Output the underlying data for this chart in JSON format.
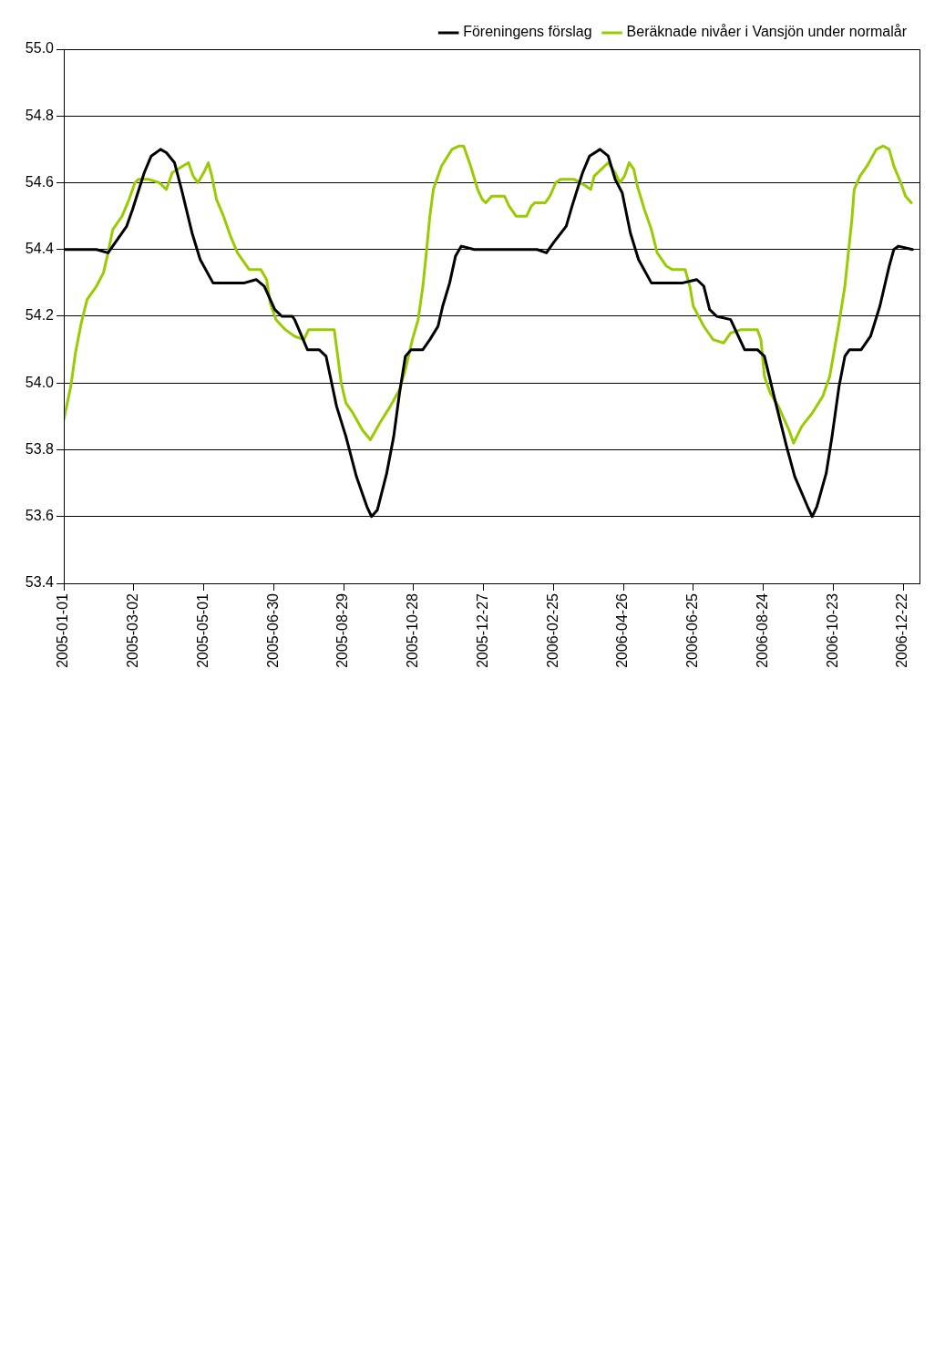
{
  "chart_data": {
    "type": "line",
    "xlim": [
      "2005-01-01",
      "2007-01-05"
    ],
    "xticks": [
      "2005-01-01",
      "2005-03-02",
      "2005-05-01",
      "2005-06-30",
      "2005-08-29",
      "2005-10-28",
      "2005-12-27",
      "2006-02-25",
      "2006-04-26",
      "2006-06-25",
      "2006-08-24",
      "2006-10-23",
      "2006-12-22"
    ],
    "ylim": [
      53.4,
      55.0
    ],
    "yticks": [
      {
        "value": 53.4,
        "label": "53.4"
      },
      {
        "value": 53.6,
        "label": "53.6"
      },
      {
        "value": 53.8,
        "label": "53.8"
      },
      {
        "value": 54,
        "label": "54.0"
      },
      {
        "value": 54.2,
        "label": "54.2"
      },
      {
        "value": 54.4,
        "label": "54.4"
      },
      {
        "value": 54.6,
        "label": "54.6"
      },
      {
        "value": 54.8,
        "label": "54.8"
      },
      {
        "value": 55,
        "label": "55.0"
      }
    ],
    "grid": "y",
    "legend": "top right",
    "marker": "none",
    "line_style": "solid",
    "series": [
      {
        "name": "Föreningens förslag",
        "color": "#000000",
        "x": [
          "2005-01-01",
          "2005-01-29",
          "2005-02-08",
          "2005-02-14",
          "2005-02-24",
          "2005-03-01",
          "2005-03-11",
          "2005-03-17",
          "2005-03-25",
          "2005-03-30",
          "2005-04-06",
          "2005-04-12",
          "2005-04-21",
          "2005-04-28",
          "2005-05-09",
          "2005-05-14",
          "2005-06-05",
          "2005-06-15",
          "2005-06-22",
          "2005-07-01",
          "2005-07-07",
          "2005-07-16",
          "2005-07-18",
          "2005-07-29",
          "2005-08-08",
          "2005-08-14",
          "2005-08-23",
          "2005-08-31",
          "2005-09-09",
          "2005-09-18",
          "2005-09-22",
          "2005-09-27",
          "2005-10-05",
          "2005-10-11",
          "2005-10-16",
          "2005-10-21",
          "2005-10-26",
          "2005-11-05",
          "2005-11-11",
          "2005-11-18",
          "2005-11-22",
          "2005-11-28",
          "2005-12-03",
          "2005-12-08",
          "2005-12-19",
          "2006-02-11",
          "2006-02-19",
          "2006-02-25",
          "2006-03-08",
          "2006-03-13",
          "2006-03-22",
          "2006-03-28",
          "2006-04-06",
          "2006-04-13",
          "2006-04-19",
          "2006-04-25",
          "2006-05-02",
          "2006-05-09",
          "2006-05-20",
          "2006-05-27",
          "2006-06-16",
          "2006-06-28",
          "2006-07-04",
          "2006-07-09",
          "2006-07-15",
          "2006-07-27",
          "2006-08-08",
          "2006-08-19",
          "2006-08-25",
          "2006-09-03",
          "2006-09-13",
          "2006-09-20",
          "2006-10-01",
          "2006-10-05",
          "2006-10-09",
          "2006-10-17",
          "2006-10-22",
          "2006-10-28",
          "2006-11-02",
          "2006-11-06",
          "2006-11-16",
          "2006-11-24",
          "2006-12-02",
          "2006-12-10",
          "2006-12-14",
          "2006-12-18",
          "2006-12-30"
        ],
        "values": [
          54.4,
          54.4,
          54.39,
          54.42,
          54.47,
          54.52,
          54.63,
          54.68,
          54.7,
          54.69,
          54.66,
          54.58,
          54.45,
          54.37,
          54.3,
          54.3,
          54.3,
          54.31,
          54.29,
          54.22,
          54.2,
          54.2,
          54.19,
          54.1,
          54.1,
          54.08,
          53.93,
          53.84,
          53.72,
          53.63,
          53.6,
          53.62,
          53.73,
          53.84,
          53.97,
          54.08,
          54.1,
          54.1,
          54.13,
          54.17,
          54.23,
          54.3,
          54.38,
          54.41,
          54.4,
          54.4,
          54.39,
          54.42,
          54.47,
          54.53,
          54.63,
          54.68,
          54.7,
          54.68,
          54.61,
          54.57,
          54.45,
          54.37,
          54.3,
          54.3,
          54.3,
          54.31,
          54.29,
          54.22,
          54.2,
          54.19,
          54.1,
          54.1,
          54.08,
          53.95,
          53.81,
          53.72,
          53.63,
          53.6,
          53.63,
          53.73,
          53.84,
          53.99,
          54.08,
          54.1,
          54.1,
          54.14,
          54.23,
          54.35,
          54.4,
          54.41,
          54.4
        ]
      },
      {
        "name": "Beräknade nivåer i Vansjön under normalår",
        "color": "#99cc00",
        "x": [
          "2005-01-01",
          "2005-01-07",
          "2005-01-11",
          "2005-01-16",
          "2005-01-21",
          "2005-01-29",
          "2005-02-04",
          "2005-02-08",
          "2005-02-12",
          "2005-02-20",
          "2005-02-26",
          "2005-03-03",
          "2005-03-06",
          "2005-03-15",
          "2005-03-24",
          "2005-03-30",
          "2005-04-04",
          "2005-04-13",
          "2005-04-18",
          "2005-04-22",
          "2005-04-26",
          "2005-05-01",
          "2005-05-05",
          "2005-05-08",
          "2005-05-12",
          "2005-05-18",
          "2005-05-24",
          "2005-05-30",
          "2005-06-05",
          "2005-06-09",
          "2005-06-19",
          "2005-06-24",
          "2005-06-27",
          "2005-07-02",
          "2005-07-10",
          "2005-07-18",
          "2005-07-26",
          "2005-07-30",
          "2005-08-21",
          "2005-08-24",
          "2005-08-27",
          "2005-08-31",
          "2005-09-06",
          "2005-09-14",
          "2005-09-21",
          "2005-09-29",
          "2005-10-08",
          "2005-10-16",
          "2005-10-21",
          "2005-10-27",
          "2005-11-01",
          "2005-11-05",
          "2005-11-08",
          "2005-11-11",
          "2005-11-14",
          "2005-11-17",
          "2005-11-21",
          "2005-11-30",
          "2005-12-06",
          "2005-12-10",
          "2005-12-16",
          "2005-12-22",
          "2005-12-26",
          "2005-12-29",
          "2006-01-03",
          "2006-01-14",
          "2006-01-18",
          "2006-01-24",
          "2006-02-02",
          "2006-02-06",
          "2006-02-09",
          "2006-02-18",
          "2006-02-22",
          "2006-02-27",
          "2006-03-03",
          "2006-03-15",
          "2006-03-25",
          "2006-03-29",
          "2006-04-01",
          "2006-04-07",
          "2006-04-13",
          "2006-04-19",
          "2006-04-23",
          "2006-04-27",
          "2006-05-01",
          "2006-05-05",
          "2006-05-08",
          "2006-05-14",
          "2006-05-20",
          "2006-05-25",
          "2006-06-02",
          "2006-06-07",
          "2006-06-18",
          "2006-06-22",
          "2006-06-25",
          "2006-07-04",
          "2006-07-12",
          "2006-07-21",
          "2006-07-27",
          "2006-08-05",
          "2006-08-19",
          "2006-08-22",
          "2006-08-25",
          "2006-08-30",
          "2006-09-06",
          "2006-09-15",
          "2006-09-19",
          "2006-09-26",
          "2006-10-05",
          "2006-10-14",
          "2006-10-20",
          "2006-10-24",
          "2006-10-28",
          "2006-11-02",
          "2006-11-05",
          "2006-11-08",
          "2006-11-10",
          "2006-11-15",
          "2006-11-21",
          "2006-11-29",
          "2006-12-05",
          "2006-12-10",
          "2006-12-14",
          "2006-12-20",
          "2006-12-24",
          "2006-12-29"
        ],
        "values": [
          53.89,
          53.99,
          54.09,
          54.18,
          54.25,
          54.29,
          54.33,
          54.39,
          54.46,
          54.5,
          54.55,
          54.6,
          54.61,
          54.61,
          54.6,
          54.58,
          54.63,
          54.65,
          54.66,
          54.62,
          54.6,
          54.63,
          54.66,
          54.62,
          54.55,
          54.5,
          54.44,
          54.39,
          54.36,
          54.34,
          54.34,
          54.31,
          54.24,
          54.19,
          54.16,
          54.14,
          54.13,
          54.16,
          54.16,
          54.08,
          54.0,
          53.94,
          53.91,
          53.86,
          53.83,
          53.88,
          53.93,
          53.98,
          54.04,
          54.13,
          54.19,
          54.29,
          54.39,
          54.5,
          54.58,
          54.61,
          54.65,
          54.7,
          54.71,
          54.71,
          54.65,
          54.58,
          54.55,
          54.54,
          54.56,
          54.56,
          54.53,
          54.5,
          54.5,
          54.53,
          54.54,
          54.54,
          54.56,
          54.6,
          54.61,
          54.61,
          54.59,
          54.58,
          54.62,
          54.64,
          54.66,
          54.63,
          54.6,
          54.62,
          54.66,
          54.64,
          54.59,
          54.52,
          54.46,
          54.39,
          54.35,
          54.34,
          54.34,
          54.29,
          54.23,
          54.17,
          54.13,
          54.12,
          54.15,
          54.16,
          54.16,
          54.13,
          54.02,
          53.97,
          53.93,
          53.86,
          53.82,
          53.87,
          53.91,
          53.96,
          54.02,
          54.1,
          54.18,
          54.29,
          54.39,
          54.49,
          54.58,
          54.62,
          54.65,
          54.7,
          54.71,
          54.7,
          54.65,
          54.6,
          54.56,
          54.54
        ]
      }
    ]
  }
}
